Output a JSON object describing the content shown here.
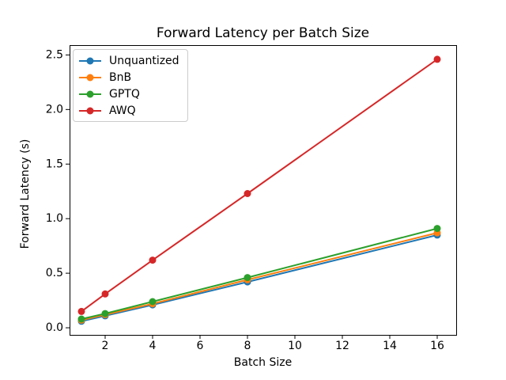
{
  "figure": {
    "background": "#ffffff",
    "spine_color": "#000000",
    "text_color": "#000000"
  },
  "chart_data": {
    "type": "line",
    "title": "Forward Latency per Batch Size",
    "xlabel": "Batch Size",
    "ylabel": "Forward Latency (s)",
    "x": [
      1,
      2,
      4,
      8,
      16
    ],
    "series": [
      {
        "name": "Unquantized",
        "color": "#1f77b4",
        "marker": "circle",
        "values": [
          0.06,
          0.11,
          0.21,
          0.42,
          0.85
        ]
      },
      {
        "name": "BnB",
        "color": "#ff7f0e",
        "marker": "circle",
        "values": [
          0.07,
          0.12,
          0.22,
          0.44,
          0.87
        ]
      },
      {
        "name": "GPTQ",
        "color": "#2ca02c",
        "marker": "circle",
        "values": [
          0.08,
          0.13,
          0.24,
          0.46,
          0.91
        ]
      },
      {
        "name": "AWQ",
        "color": "#d62728",
        "marker": "circle",
        "values": [
          0.15,
          0.31,
          0.62,
          1.23,
          2.46
        ]
      }
    ],
    "xlim": [
      0.5,
      16.8
    ],
    "ylim": [
      -0.065,
      2.59
    ],
    "xticks": [
      "2",
      "4",
      "6",
      "8",
      "10",
      "12",
      "14",
      "16"
    ],
    "yticks": [
      "0.0",
      "0.5",
      "1.0",
      "1.5",
      "2.0",
      "2.5"
    ],
    "grid": false,
    "legend_position": "upper left"
  }
}
